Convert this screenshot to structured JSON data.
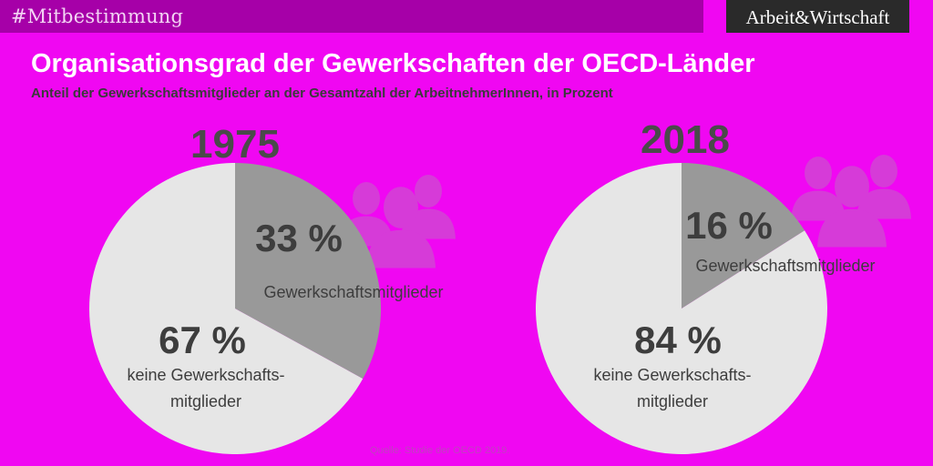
{
  "header": {
    "hashtag": "#Mitbestimmung",
    "logo": "Arbeit&Wirtschaft"
  },
  "title": "Organisationsgrad der Gewerkschaften der OECD-Länder",
  "subtitle": "Anteil der Gewerkschaftsmitglieder an der Gesamtzahl der ArbeitnehmerInnen, in Prozent",
  "source": "Quelle:  Studie der OECD 2019.",
  "colors": {
    "background": "#f007f2",
    "topbar": "#a600a8",
    "members": "#999999",
    "non_members": "#e6e6e6",
    "icons": "#d63bd8"
  },
  "chart_data": [
    {
      "type": "pie",
      "title": "1975",
      "slices": [
        {
          "value": 33,
          "pct_label": "33 %",
          "label_lines": [
            "Gewerkschaftsmitglieder"
          ]
        },
        {
          "value": 67,
          "pct_label": "67 %",
          "label_lines": [
            "keine Gewerkschafts-",
            "mitglieder"
          ]
        }
      ]
    },
    {
      "type": "pie",
      "title": "2018",
      "slices": [
        {
          "value": 16,
          "pct_label": "16 %",
          "label_lines": [
            "Gewerkschaftsmitglieder"
          ]
        },
        {
          "value": 84,
          "pct_label": "84 %",
          "label_lines": [
            "keine Gewerkschafts-",
            "mitglieder"
          ]
        }
      ]
    }
  ]
}
